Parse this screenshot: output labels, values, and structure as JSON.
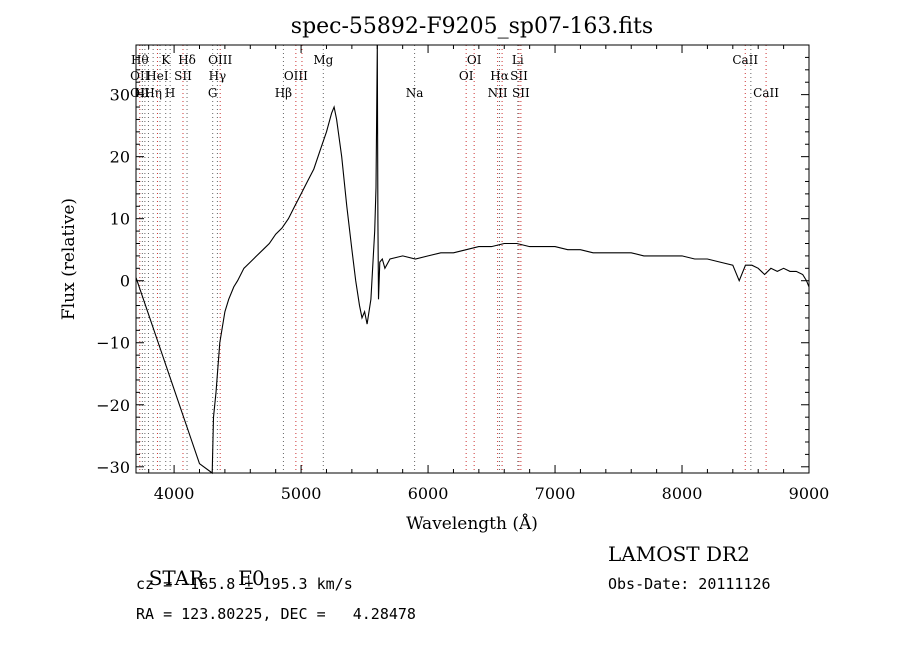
{
  "chart_data": {
    "type": "line",
    "title": "spec-55892-F9205_sp07-163.fits",
    "xlabel": "Wavelength (Å)",
    "ylabel": "Flux (relative)",
    "xlim": [
      3700,
      9000
    ],
    "ylim": [
      -31,
      38
    ],
    "xticks": [
      4000,
      5000,
      6000,
      7000,
      8000,
      9000
    ],
    "yticks": [
      -30,
      -20,
      -10,
      0,
      10,
      20,
      30
    ],
    "grid": false,
    "colors": {
      "axes": "#000000",
      "line": "#000000",
      "emission_marker": "#cc3333",
      "absorption_marker": "#666666"
    },
    "series": [
      {
        "x": [
          3700,
          3800,
          3900,
          4000,
          4100,
          4200,
          4300,
          4310,
          4330,
          4360,
          4400,
          4430,
          4470,
          4500,
          4550,
          4600,
          4650,
          4700,
          4750,
          4800,
          4850,
          4900,
          4950,
          5000,
          5050,
          5100,
          5150,
          5200,
          5240,
          5260,
          5280,
          5320,
          5360,
          5400,
          5430,
          5460,
          5480,
          5500,
          5520,
          5550,
          5580,
          5590,
          5600,
          5605,
          5610,
          5620,
          5640,
          5660,
          5700,
          5800,
          5900,
          6000,
          6100,
          6200,
          6300,
          6400,
          6500,
          6600,
          6700,
          6800,
          6900,
          7000,
          7100,
          7200,
          7300,
          7400,
          7500,
          7600,
          7700,
          7800,
          7900,
          8000,
          8100,
          8200,
          8300,
          8400,
          8450,
          8500,
          8550,
          8600,
          8650,
          8700,
          8750,
          8800,
          8850,
          8900,
          8950,
          8980,
          9000
        ],
        "y": [
          0.5,
          -5.5,
          -11.5,
          -17.5,
          -23.5,
          -29.5,
          -31,
          -22,
          -18,
          -10,
          -5,
          -3,
          -1,
          0,
          2,
          3,
          4,
          5,
          6,
          7.5,
          8.5,
          10,
          12,
          14,
          16,
          18,
          21,
          24,
          27,
          28,
          26,
          20,
          12,
          5,
          0,
          -4,
          -6,
          -5,
          -7,
          -3,
          8,
          15,
          38,
          10,
          -3,
          3,
          3.5,
          2,
          3.5,
          4,
          3.5,
          4,
          4.5,
          4.5,
          5,
          5.5,
          5.5,
          6,
          6,
          5.5,
          5.5,
          5.5,
          5,
          5,
          4.5,
          4.5,
          4.5,
          4.5,
          4,
          4,
          4,
          4,
          3.5,
          3.5,
          3,
          2.5,
          0,
          2.5,
          2.5,
          2,
          1,
          2,
          1.5,
          2,
          1.5,
          1.5,
          1,
          0,
          -1
        ]
      }
    ],
    "line_markers": [
      {
        "x": 3730,
        "top": "Hθ",
        "mid": "OII",
        "low": "OII",
        "color": "emission"
      },
      {
        "x": 3750,
        "top": "",
        "mid": "",
        "low": "Hι",
        "color": "absorption"
      },
      {
        "x": 3770,
        "top": "",
        "mid": "",
        "low": "",
        "color": "absorption"
      },
      {
        "x": 3798,
        "top": "",
        "mid": "",
        "low": "",
        "color": "absorption"
      },
      {
        "x": 3835,
        "top": "",
        "mid": "",
        "low": "Hη",
        "color": "absorption"
      },
      {
        "x": 3869,
        "top": "",
        "mid": "HeI",
        "low": "",
        "color": "emission"
      },
      {
        "x": 3889,
        "top": "",
        "mid": "",
        "low": "",
        "color": "absorption"
      },
      {
        "x": 3934,
        "top": "K",
        "mid": "",
        "low": "",
        "color": "absorption"
      },
      {
        "x": 3969,
        "top": "",
        "mid": "",
        "low": "H",
        "color": "absorption"
      },
      {
        "x": 4070,
        "top": "",
        "mid": "SII",
        "low": "",
        "color": "emission"
      },
      {
        "x": 4102,
        "top": "Hδ",
        "mid": "",
        "low": "",
        "color": "absorption"
      },
      {
        "x": 4304,
        "top": "",
        "mid": "",
        "low": "G",
        "color": "absorption"
      },
      {
        "x": 4341,
        "top": "",
        "mid": "Hγ",
        "low": "",
        "color": "absorption"
      },
      {
        "x": 4363,
        "top": "OIII",
        "mid": "",
        "low": "",
        "color": "emission"
      },
      {
        "x": 4861,
        "top": "",
        "mid": "",
        "low": "Hβ",
        "color": "absorption"
      },
      {
        "x": 4959,
        "top": "",
        "mid": "OIII",
        "low": "",
        "color": "emission"
      },
      {
        "x": 5007,
        "top": "",
        "mid": "",
        "low": "",
        "color": "emission"
      },
      {
        "x": 5175,
        "top": "Mg",
        "mid": "",
        "low": "",
        "color": "absorption"
      },
      {
        "x": 5894,
        "top": "",
        "mid": "",
        "low": "Na",
        "color": "absorption"
      },
      {
        "x": 6300,
        "top": "",
        "mid": "OI",
        "low": "",
        "color": "emission"
      },
      {
        "x": 6363,
        "top": "OI",
        "mid": "",
        "low": "",
        "color": "emission"
      },
      {
        "x": 6548,
        "top": "",
        "mid": "",
        "low": "NII",
        "color": "emission"
      },
      {
        "x": 6563,
        "top": "",
        "mid": "Hα",
        "low": "",
        "color": "absorption"
      },
      {
        "x": 6583,
        "top": "",
        "mid": "",
        "low": "",
        "color": "emission"
      },
      {
        "x": 6707,
        "top": "Li",
        "mid": "",
        "low": "",
        "color": "absorption"
      },
      {
        "x": 6716,
        "top": "",
        "mid": "SII",
        "low": "",
        "color": "emission"
      },
      {
        "x": 6731,
        "top": "",
        "mid": "",
        "low": "SII",
        "color": "emission"
      },
      {
        "x": 8498,
        "top": "CaII",
        "mid": "",
        "low": "",
        "color": "emission"
      },
      {
        "x": 8542,
        "top": "",
        "mid": "",
        "low": "",
        "color": "absorption"
      },
      {
        "x": 8662,
        "top": "",
        "mid": "",
        "low": "CaII",
        "color": "emission"
      }
    ]
  },
  "info": {
    "class_label": "STAR",
    "subclass": "F0",
    "survey": "LAMOST DR2",
    "cz_line": "cz = −165.8 ± 195.3 km/s",
    "obs_date": "Obs-Date: 20111126",
    "coords": "RA = 123.80225, DEC =   4.28478"
  }
}
